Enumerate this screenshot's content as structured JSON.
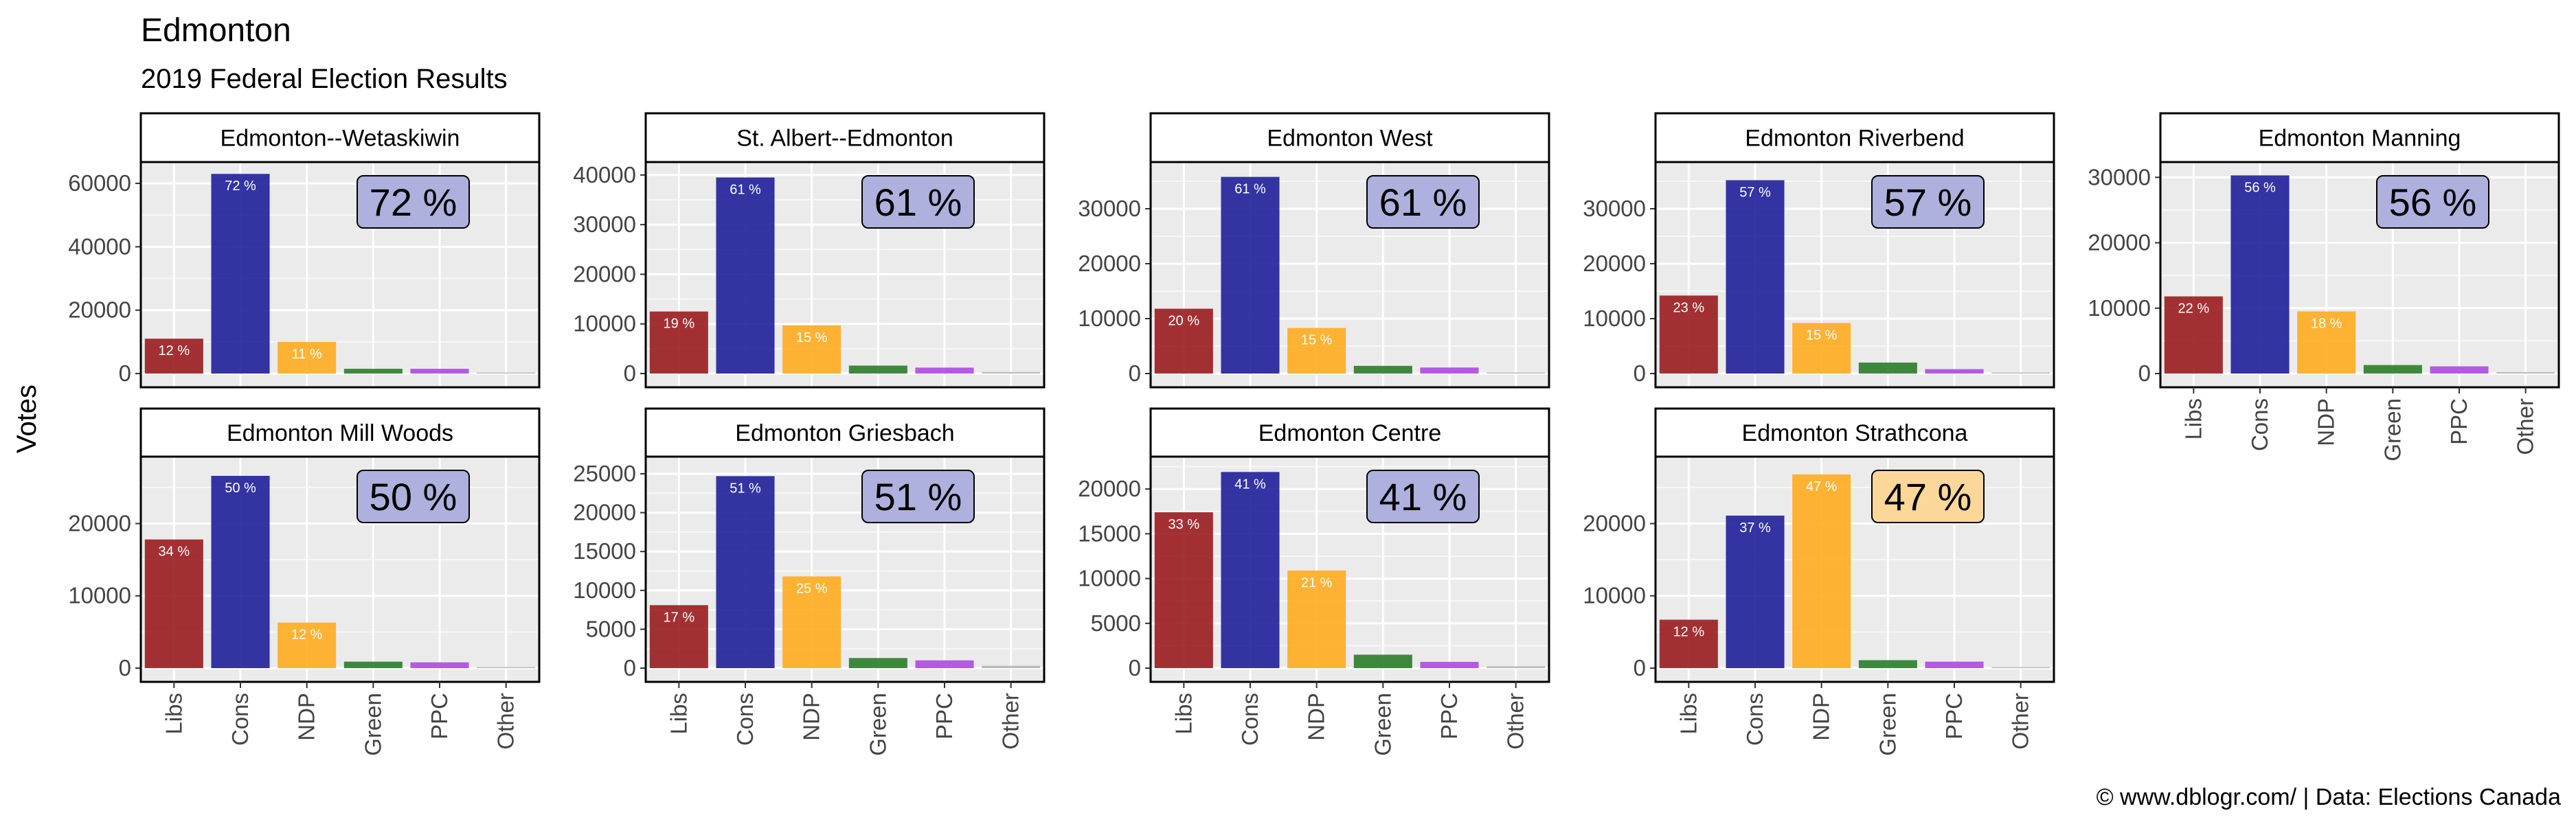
{
  "title": "Edmonton",
  "subtitle": "2019 Federal Election Results",
  "caption": "© www.dblogr.com/  |  Data: Elections Canada",
  "colors": {
    "Libs": "#9a1c1f",
    "Cons": "#1f1f9a",
    "NDP": "#ffac1f",
    "Green": "#2b7d2b",
    "PPC": "#ad4ae3",
    "Other": "#b5b5b5",
    "panel_bg": "#ebebeb",
    "label_fill_cons": "#aeb0dd",
    "label_fill_ndp": "#fbd79a"
  },
  "chart_data": {
    "type": "bar",
    "ylabel": "Votes",
    "categories": [
      "Libs",
      "Cons",
      "NDP",
      "Green",
      "PPC",
      "Other"
    ],
    "panels": [
      {
        "name": "Edmonton--Wetaskiwin",
        "ylim": [
          0,
          65000
        ],
        "yticks": [
          0,
          20000,
          40000,
          60000
        ],
        "values": [
          11000,
          63000,
          10000,
          1500,
          1500,
          0
        ],
        "labels": [
          "12 %",
          "72 %",
          "11 %",
          "",
          "",
          ""
        ],
        "winner": "72 %",
        "winner_party": "Cons"
      },
      {
        "name": "St. Albert--Edmonton",
        "ylim": [
          0,
          41500
        ],
        "yticks": [
          0,
          10000,
          20000,
          30000,
          40000
        ],
        "values": [
          12500,
          39500,
          9700,
          1600,
          1200,
          300
        ],
        "labels": [
          "19 %",
          "61 %",
          "15 %",
          "",
          "",
          ""
        ],
        "winner": "61 %",
        "winner_party": "Cons"
      },
      {
        "name": "Edmonton West",
        "ylim": [
          0,
          37500
        ],
        "yticks": [
          0,
          10000,
          20000,
          30000
        ],
        "values": [
          11800,
          35800,
          8300,
          1400,
          1100,
          0
        ],
        "labels": [
          "20 %",
          "61 %",
          "15 %",
          "",
          "",
          ""
        ],
        "winner": "61 %",
        "winner_party": "Cons"
      },
      {
        "name": "Edmonton Riverbend",
        "ylim": [
          0,
          37500
        ],
        "yticks": [
          0,
          10000,
          20000,
          30000
        ],
        "values": [
          14200,
          35200,
          9200,
          2000,
          800,
          0
        ],
        "labels": [
          "23 %",
          "57 %",
          "15 %",
          "",
          "",
          ""
        ],
        "winner": "57 %",
        "winner_party": "Cons"
      },
      {
        "name": "Edmonton Manning",
        "ylim": [
          0,
          31500
        ],
        "yticks": [
          0,
          10000,
          20000,
          30000
        ],
        "values": [
          11800,
          30300,
          9500,
          1300,
          1100,
          200
        ],
        "labels": [
          "22 %",
          "56 %",
          "18 %",
          "",
          "",
          ""
        ],
        "winner": "56 %",
        "winner_party": "Cons"
      },
      {
        "name": "Edmonton Mill Woods",
        "ylim": [
          0,
          28500
        ],
        "yticks": [
          0,
          10000,
          20000
        ],
        "values": [
          17800,
          26600,
          6300,
          900,
          800,
          0
        ],
        "labels": [
          "34 %",
          "50 %",
          "12 %",
          "",
          "",
          ""
        ],
        "winner": "50 %",
        "winner_party": "Cons"
      },
      {
        "name": "Edmonton Griesbach",
        "ylim": [
          0,
          26500
        ],
        "yticks": [
          0,
          5000,
          10000,
          15000,
          20000,
          25000
        ],
        "values": [
          8100,
          24700,
          11800,
          1300,
          1000,
          300
        ],
        "labels": [
          "17 %",
          "51 %",
          "25 %",
          "",
          "",
          ""
        ],
        "winner": "51 %",
        "winner_party": "Cons"
      },
      {
        "name": "Edmonton Centre",
        "ylim": [
          0,
          23000
        ],
        "yticks": [
          0,
          5000,
          10000,
          15000,
          20000
        ],
        "values": [
          17400,
          21900,
          10900,
          1500,
          700,
          200
        ],
        "labels": [
          "33 %",
          "41 %",
          "21 %",
          "",
          "",
          ""
        ],
        "winner": "41 %",
        "winner_party": "Cons"
      },
      {
        "name": "Edmonton Strathcona",
        "ylim": [
          0,
          28500
        ],
        "yticks": [
          0,
          10000,
          20000
        ],
        "values": [
          6700,
          21100,
          26800,
          1100,
          900,
          0
        ],
        "labels": [
          "12 %",
          "37 %",
          "47 %",
          "",
          "",
          ""
        ],
        "winner": "47 %",
        "winner_party": "NDP"
      }
    ]
  }
}
